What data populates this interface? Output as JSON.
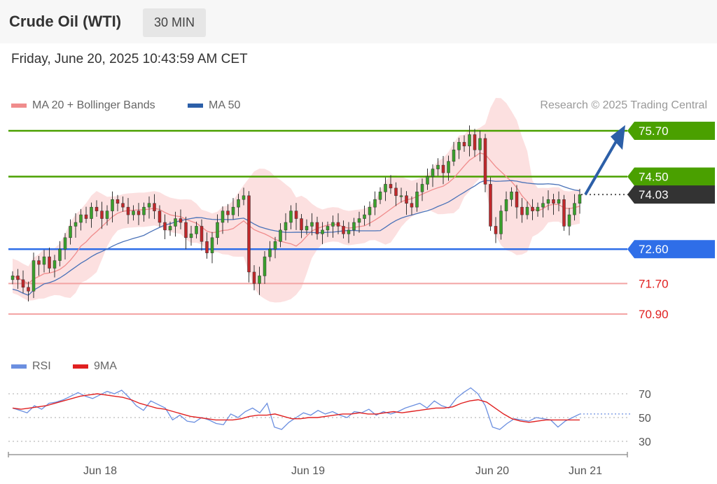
{
  "header": {
    "title": "Crude Oil (WTI)",
    "timeframe": "30 MIN"
  },
  "date": "Friday, June 20, 2025 10:43:59 AM CET",
  "legend": {
    "ma20": {
      "label": "MA 20 + Bollinger Bands",
      "color": "#f08c8c"
    },
    "ma50": {
      "label": "MA 50",
      "color": "#2c5fa8"
    },
    "credit": "Research © 2025 Trading Central"
  },
  "rsi_legend": {
    "rsi": {
      "label": "RSI",
      "color": "#6b8fe0"
    },
    "ma9": {
      "label": "9MA",
      "color": "#e02020"
    }
  },
  "chart_data": {
    "type": "candlestick",
    "price_range": [
      69.8,
      76.3
    ],
    "levels": [
      {
        "value": "75.70",
        "kind": "resistance",
        "color": "#4aa000"
      },
      {
        "value": "74.50",
        "kind": "resistance",
        "color": "#4aa000"
      },
      {
        "value": "74.03",
        "kind": "last",
        "color": "#333333"
      },
      {
        "value": "72.60",
        "kind": "support",
        "color": "#2f6ee8"
      },
      {
        "value": "71.70",
        "kind": "support",
        "color": "#e02020"
      },
      {
        "value": "70.90",
        "kind": "support",
        "color": "#e02020"
      }
    ],
    "x_ticks": [
      "Jun 18",
      "Jun 19",
      "Jun 20",
      "Jun 21"
    ],
    "rsi_ticks": [
      "70",
      "50",
      "30"
    ],
    "close": [
      71.9,
      71.8,
      71.6,
      71.5,
      72.3,
      72.2,
      72.4,
      72.1,
      72.3,
      72.6,
      72.9,
      73.2,
      73.3,
      73.5,
      73.4,
      73.7,
      73.6,
      73.4,
      73.6,
      73.9,
      73.8,
      73.7,
      73.5,
      73.6,
      73.5,
      73.7,
      73.8,
      73.6,
      73.3,
      73.1,
      73.2,
      73.4,
      73.3,
      72.9,
      73.0,
      73.2,
      72.8,
      72.5,
      72.9,
      73.3,
      73.6,
      73.5,
      73.7,
      73.9,
      74.0,
      72.0,
      71.7,
      71.9,
      72.4,
      72.6,
      72.8,
      73.1,
      73.3,
      73.6,
      73.4,
      73.1,
      73.2,
      73.3,
      73.0,
      73.1,
      73.2,
      73.3,
      73.2,
      73.0,
      73.1,
      73.3,
      73.4,
      73.5,
      73.7,
      73.9,
      74.1,
      74.3,
      74.2,
      74.0,
      74.0,
      73.8,
      73.7,
      74.1,
      74.3,
      74.5,
      74.7,
      74.8,
      74.6,
      74.9,
      75.2,
      75.4,
      75.3,
      75.6,
      75.2,
      75.5,
      74.3,
      73.2,
      73.0,
      73.6,
      73.9,
      74.1,
      73.7,
      73.5,
      73.7,
      73.6,
      73.7,
      73.8,
      73.9,
      73.8,
      73.9,
      73.2,
      73.5,
      73.8,
      74.03
    ],
    "rsi": [
      58,
      56,
      54,
      60,
      57,
      62,
      63,
      65,
      68,
      71,
      68,
      66,
      69,
      72,
      70,
      73,
      67,
      60,
      56,
      64,
      61,
      58,
      48,
      52,
      47,
      46,
      50,
      48,
      45,
      44,
      53,
      50,
      55,
      58,
      54,
      62,
      42,
      40,
      46,
      50,
      54,
      52,
      56,
      53,
      55,
      52,
      50,
      55,
      54,
      57,
      52,
      55,
      53,
      55,
      58,
      60,
      62,
      58,
      64,
      60,
      58,
      66,
      71,
      75,
      70,
      60,
      42,
      40,
      45,
      49,
      48,
      47,
      50,
      49,
      48,
      42,
      47,
      50,
      53
    ],
    "rsi_ma9": [
      58,
      57,
      58,
      59,
      60,
      62,
      64,
      66,
      68,
      69,
      70,
      69,
      68,
      67,
      65,
      62,
      60,
      58,
      57,
      55,
      53,
      51,
      50,
      49,
      48,
      48,
      48,
      49,
      51,
      52,
      52,
      53,
      51,
      49,
      49,
      50,
      50,
      51,
      52,
      53,
      53,
      54,
      53,
      53,
      54,
      55,
      54,
      55,
      56,
      57,
      58,
      58,
      59,
      62,
      64,
      65,
      63,
      58,
      53,
      49,
      47,
      46,
      47,
      48,
      48,
      48,
      48,
      48
    ]
  }
}
